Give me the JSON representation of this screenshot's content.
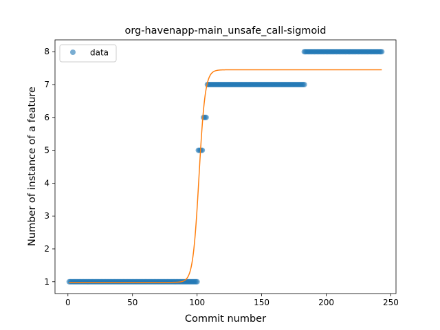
{
  "chart_data": {
    "type": "scatter",
    "title": "org-havenapp-main_unsafe_call-sigmoid",
    "xlabel": "Commit number",
    "ylabel": "Number of instance of a feature",
    "xlim": [
      -10,
      254
    ],
    "ylim": [
      0.64,
      8.36
    ],
    "xticks": [
      0,
      50,
      100,
      150,
      200,
      250
    ],
    "yticks": [
      1,
      2,
      3,
      4,
      5,
      6,
      7,
      8
    ],
    "grid": false,
    "legend": {
      "placement": "top-left",
      "entries": [
        "data"
      ]
    },
    "colors": {
      "points": "#1f77b4",
      "fit": "#ff7f0e"
    },
    "series": [
      {
        "name": "data",
        "kind": "points",
        "segments": [
          {
            "x_from": 1,
            "x_to": 100,
            "y": 1
          },
          {
            "x_from": 101,
            "x_to": 104,
            "y": 5
          },
          {
            "x_from": 105,
            "x_to": 107,
            "y": 6
          },
          {
            "x_from": 108,
            "x_to": 183,
            "y": 7
          },
          {
            "x_from": 183,
            "x_to": 243,
            "y": 8
          }
        ]
      },
      {
        "kind": "line",
        "sigmoid": {
          "lower": 0.98,
          "upper": 7.45,
          "midpoint": 101.5,
          "steepness": 0.42
        },
        "x_range": [
          1,
          243
        ]
      }
    ]
  }
}
